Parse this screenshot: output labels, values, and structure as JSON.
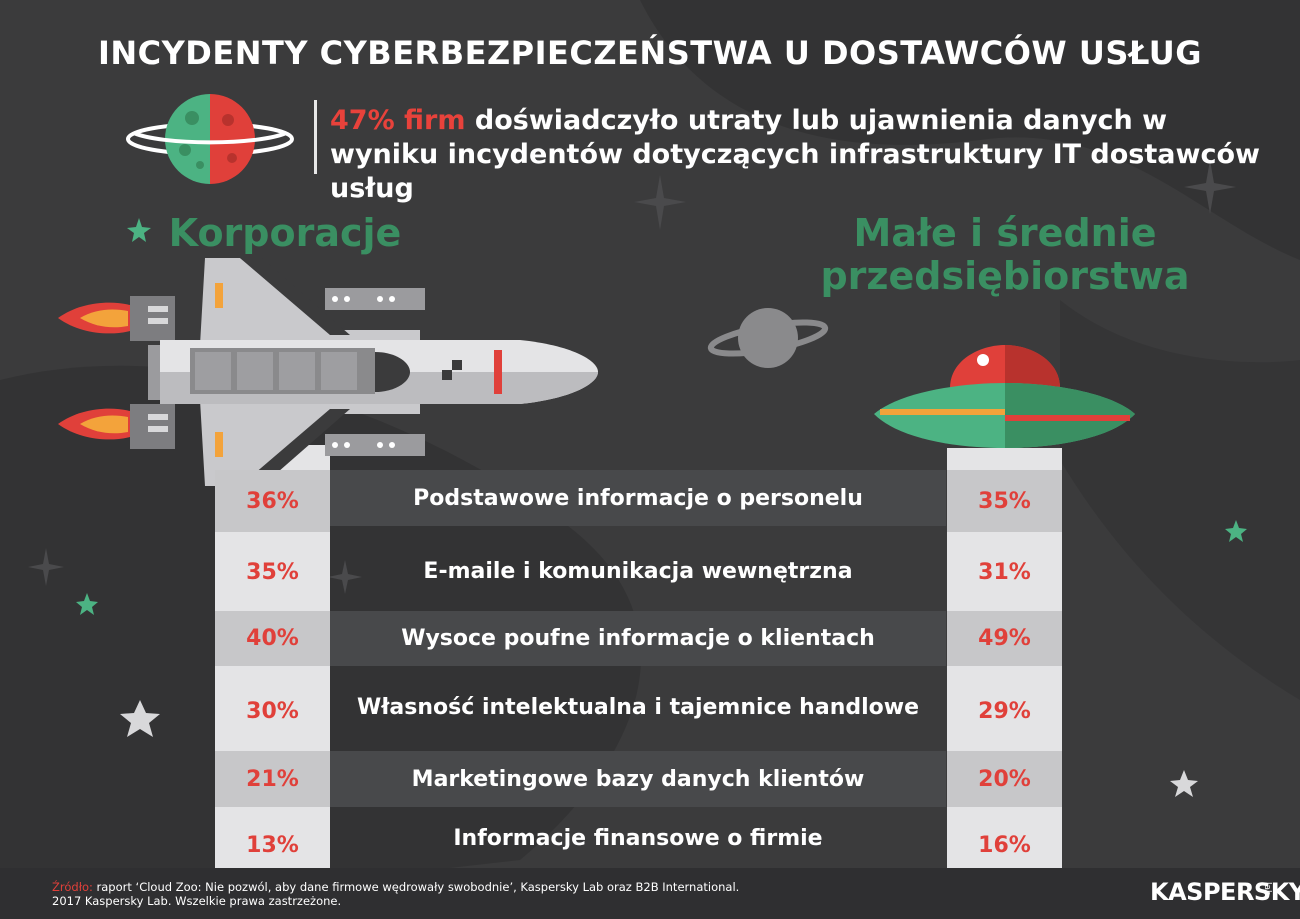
{
  "title": "INCYDENTY CYBERBEZPIECZEŃSTWA U DOSTAWCÓW USŁUG",
  "headline": {
    "highlight": "47% firm",
    "text": " doświadczyło utraty lub ujawnienia danych w wyniku incydentów dotyczących infrastruktury IT dostawców usług"
  },
  "columns": {
    "left": "Korporacje",
    "right": "Małe i średnie przedsiębiorstwa"
  },
  "rows": [
    {
      "label": "Podstawowe informacje o personelu",
      "left": "36%",
      "right": "35%"
    },
    {
      "label": "E-maile i komunikacja wewnętrzna",
      "left": "35%",
      "right": "31%"
    },
    {
      "label": "Wysoce poufne informacje o klientach",
      "left": "40%",
      "right": "49%"
    },
    {
      "label": "Własność intelektualna i tajemnice handlowe",
      "left": "30%",
      "right": "29%"
    },
    {
      "label": "Marketingowe bazy danych klientów",
      "left": "21%",
      "right": "20%"
    },
    {
      "label": "Informacje finansowe o firmie",
      "left": "13%",
      "right": "16%"
    }
  ],
  "footer": {
    "source_label": "Źródło:",
    "source_text": " raport ‘Cloud Zoo: Nie pozwól, aby dane firmowe wędrowały swobodnie’, Kaspersky Lab oraz B2B International.",
    "copyright": "2017 Kaspersky Lab. Wszelkie prawa zastrzeżone.",
    "brand": "KASPERSKY",
    "brand_sub": "lab"
  },
  "colors": {
    "background": "#3b3b3c",
    "accent_red": "#e0403a",
    "accent_green": "#3a8f62"
  }
}
